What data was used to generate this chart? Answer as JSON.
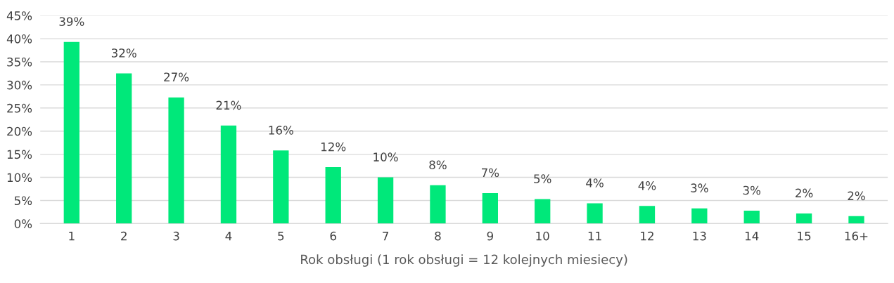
{
  "chart_data": {
    "type": "bar",
    "xlabel": "Rok obsługi (1 rok obsługi = 12 kolejnych miesiecy)",
    "categories": [
      "1",
      "2",
      "3",
      "4",
      "5",
      "6",
      "7",
      "8",
      "9",
      "10",
      "11",
      "12",
      "13",
      "14",
      "15",
      "16+"
    ],
    "values": [
      39.3,
      32.5,
      27.3,
      21.2,
      15.8,
      12.2,
      10.0,
      8.3,
      6.6,
      5.3,
      4.4,
      3.8,
      3.3,
      2.8,
      2.2,
      1.6
    ],
    "value_labels": [
      "39%",
      "32%",
      "27%",
      "21%",
      "16%",
      "12%",
      "10%",
      "8%",
      "7%",
      "5%",
      "4%",
      "4%",
      "3%",
      "3%",
      "2%",
      "2%"
    ],
    "color": "#00e87a",
    "ylim": [
      0,
      45
    ],
    "yticks": [
      {
        "value": 0,
        "label": "0%"
      },
      {
        "value": 5,
        "label": "5%"
      },
      {
        "value": 10,
        "label": "10%"
      },
      {
        "value": 15,
        "label": "15%"
      },
      {
        "value": 20,
        "label": "20%"
      },
      {
        "value": 25,
        "label": "25%"
      },
      {
        "value": 30,
        "label": "30%"
      },
      {
        "value": 35,
        "label": "35%"
      },
      {
        "value": 40,
        "label": "40%"
      },
      {
        "value": 45,
        "label": "45%"
      }
    ],
    "grid": "y",
    "legend": false
  }
}
